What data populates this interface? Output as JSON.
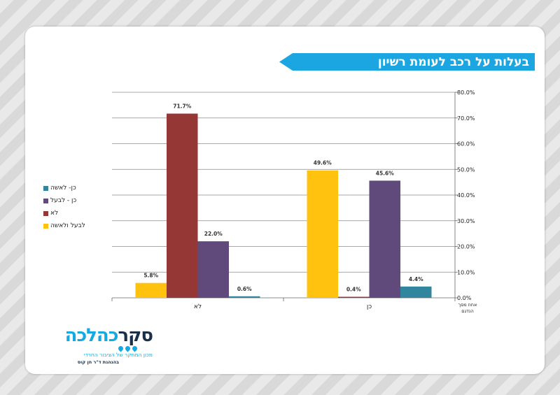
{
  "slide": {
    "title": "בעלות על רכב לעומת רשיון"
  },
  "colors": {
    "banner": "#1ba6e1",
    "series_yellow": "#ffc20e",
    "series_red": "#953735",
    "series_purple": "#604a7b",
    "series_teal": "#31859c"
  },
  "chart_data": {
    "type": "bar",
    "categories": [
      "לא",
      "כן"
    ],
    "series": [
      {
        "name": "לבעל ולאשה",
        "values": [
          5.8,
          49.6
        ],
        "color": "#ffc20e"
      },
      {
        "name": "לא",
        "values": [
          71.7,
          0.4
        ],
        "color": "#953735"
      },
      {
        "name": "כן - לבעל",
        "values": [
          22.0,
          45.6
        ],
        "color": "#604a7b"
      },
      {
        "name": "כן- לאשה",
        "values": [
          0.6,
          4.4
        ],
        "color": "#31859c"
      }
    ],
    "data_labels": [
      [
        "5.8%",
        "71.7%",
        "22.0%",
        "0.6%"
      ],
      [
        "49.6%",
        "0.4%",
        "45.6%",
        "4.4%"
      ]
    ],
    "legend_order": [
      "כן- לאשה",
      "כן - לבעל",
      "לא",
      "לבעל ולאשה"
    ],
    "ylim": [
      0,
      80
    ],
    "yticks": [
      0,
      10,
      20,
      30,
      40,
      50,
      60,
      70,
      80
    ],
    "ytick_labels": [
      "0.0%",
      "10.0%",
      "20.0%",
      "30.0%",
      "40.0%",
      "50.0%",
      "60.0%",
      "70.0%",
      "80.0%"
    ],
    "ylabel_lines": [
      "אחוז מסך",
      "הנדגם"
    ],
    "y_axis_side": "right",
    "grid": true,
    "legend_placement": "left"
  },
  "logo": {
    "word_part1": "סקר",
    "word_part2": "כהלכה",
    "tagline": "מכון המחקר של הציבור החרדי",
    "credit": "בהנהגת ד\"ר חן קוס"
  }
}
